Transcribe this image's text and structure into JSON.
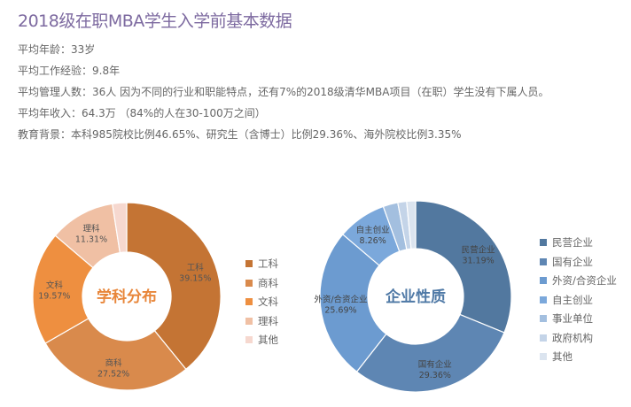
{
  "header": {
    "title": "2018级在职MBA学生入学前基本数据"
  },
  "stats": [
    "平均年龄：33岁",
    "平均工作经验：9.8年",
    "平均管理人数：36人 因为不同的行业和职能特点，还有7%的2018级清华MBA项目（在职）学生没有下属人员。",
    "平均年收入：64.3万 （84%的人在30-100万之间）",
    "教育背景：本科985院校比例46.65%、研究生（含博士）比例29.36%、海外院校比例3.35%"
  ],
  "chart_data": [
    {
      "type": "pie",
      "variant": "donut",
      "title": "学科分布",
      "title_color": "#e8863a",
      "categories": [
        "工科",
        "商科",
        "文科",
        "理科",
        "其他"
      ],
      "values": [
        39.15,
        27.52,
        19.57,
        11.31,
        2.45
      ],
      "value_labels": [
        "39.15%",
        "27.52%",
        "19.57%",
        "11.31%",
        ""
      ],
      "colors": [
        "#c47434",
        "#d98a4c",
        "#ee8f40",
        "#f0c0a4",
        "#f6d8cf"
      ],
      "legend": "right"
    },
    {
      "type": "pie",
      "variant": "donut",
      "title": "企业性质",
      "title_color": "#4f79a6",
      "categories": [
        "民营企业",
        "国有企业",
        "外资/合资企业",
        "自主创业",
        "事业单位",
        "政府机构",
        "其他"
      ],
      "values": [
        31.19,
        29.36,
        25.69,
        8.26,
        2.5,
        1.5,
        1.5
      ],
      "value_labels": [
        "31.19%",
        "29.36%",
        "25.69%",
        "8.26%",
        "",
        "",
        ""
      ],
      "colors": [
        "#52789f",
        "#5e86b3",
        "#6c9bd0",
        "#7ba8db",
        "#a3bfdf",
        "#c4d4e8",
        "#dbe4ef"
      ],
      "legend": "right"
    }
  ]
}
